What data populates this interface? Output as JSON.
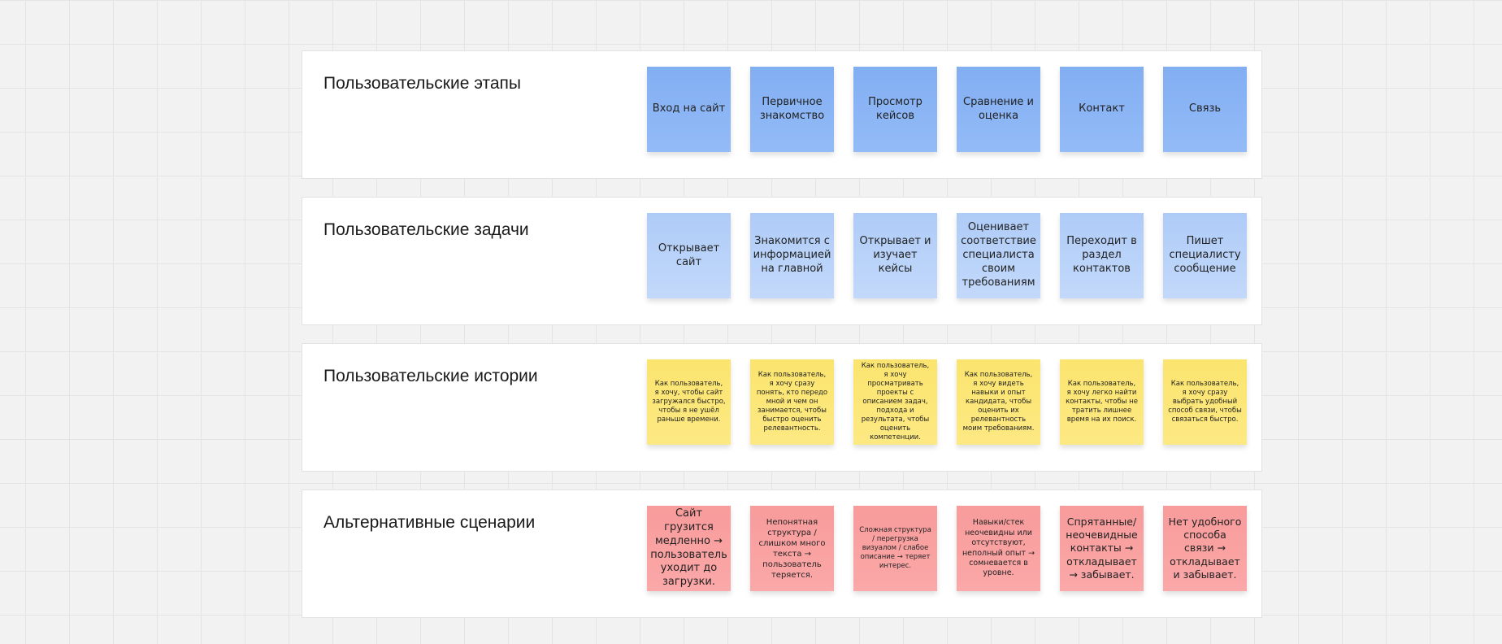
{
  "colors": {
    "stages": "#87b2f3",
    "tasks": "#b6d0f8",
    "stories": "#fce677",
    "alternatives": "#f9a0a0",
    "background": "#f2f2f2"
  },
  "rows": [
    {
      "title": "Пользовательские этапы",
      "style": "blue",
      "cards": [
        "Вход на сайт",
        "Первичное знакомство",
        "Просмотр кейсов",
        "Сравнение и оценка",
        "Контакт",
        "Связь"
      ]
    },
    {
      "title": "Пользовательские задачи",
      "style": "lblue",
      "cards": [
        "Открывает сайт",
        "Знакомится с информацией на главной",
        "Открывает и изучает кейсы",
        "Оценивает соответствие специалиста своим требованиям",
        "Переходит в раздел контактов",
        "Пишет специалисту сообщение"
      ]
    },
    {
      "title": "Пользовательские истории",
      "style": "yellow",
      "cards": [
        "Как пользователь, я хочу, чтобы сайт загружался быстро, чтобы я не ушёл раньше времени.",
        "Как пользователь, я хочу сразу понять, кто передо мной и чем он занимается, чтобы быстро оценить релевантность.",
        "Как пользователь, я хочу просматривать проекты с описанием задач, подхода и результата, чтобы оценить компетенции.",
        "Как пользователь, я хочу видеть навыки и опыт кандидата, чтобы оценить их релевантность моим требованиям.",
        "Как пользователь, я хочу легко найти контакты, чтобы не тратить лишнее время на их поиск.",
        "Как пользователь, я хочу сразу выбрать удобный способ связи, чтобы связаться быстро."
      ]
    },
    {
      "title": "Альтернативные сценарии",
      "style": "red",
      "cards": [
        "Сайт грузится медленно → пользователь уходит до загрузки.",
        "Непонятная структура / слишком много текста → пользователь теряется.",
        "Сложная структура / перегрузка визуалом / слабое описание → теряет интерес.",
        "Навыки/стек неочевидны или отсутствуют, неполный опыт → сомневается в уровне.",
        "Спрятанные/ неочевидные контакты → откладывает → забывает.",
        "Нет удобного способа связи → откладывает и забывает."
      ]
    }
  ]
}
